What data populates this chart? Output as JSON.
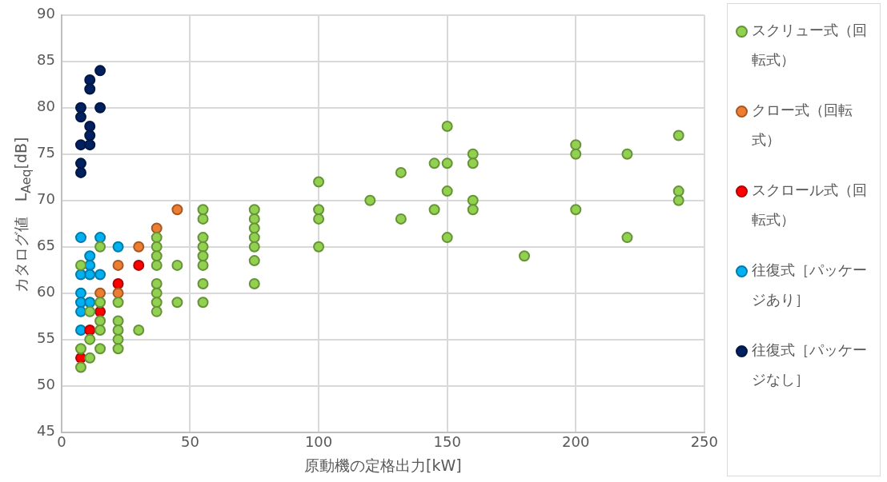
{
  "chart_data": {
    "type": "scatter",
    "xlabel": "原動機の定格出力[kW]",
    "ylabel": "カタログ値　L$_{Aeq}$[dB]",
    "xlim": [
      0,
      250
    ],
    "xticks": [
      0,
      50,
      100,
      150,
      200,
      250
    ],
    "ylim": [
      45,
      90
    ],
    "yticks": [
      45,
      50,
      55,
      60,
      65,
      70,
      75,
      80,
      85,
      90
    ],
    "grid": true,
    "legend": "right",
    "marker": "circle",
    "series": [
      {
        "name": "スクリュー式（回転式）",
        "color": "#92d050",
        "x": [
          7.5,
          7.5,
          7.5,
          11,
          11,
          11,
          15,
          15,
          15,
          15,
          15,
          22,
          22,
          22,
          22,
          22,
          30,
          37,
          37,
          37,
          37,
          37,
          37,
          37,
          37,
          45,
          45,
          55,
          55,
          55,
          55,
          55,
          55,
          55,
          55,
          75,
          75,
          75,
          75,
          75,
          75,
          75,
          100,
          100,
          100,
          100,
          120,
          132,
          132,
          145,
          145,
          150,
          150,
          150,
          150,
          160,
          160,
          160,
          160,
          180,
          200,
          200,
          200,
          220,
          220,
          240,
          240,
          240
        ],
        "values": [
          63,
          54,
          52,
          58,
          55,
          53,
          65,
          59,
          57,
          56,
          54,
          59,
          57,
          56,
          55,
          54,
          56,
          66,
          65,
          64,
          63,
          61,
          60,
          59,
          58,
          63,
          59,
          69,
          68,
          66,
          65,
          64,
          63,
          61,
          59,
          69,
          68,
          67,
          66,
          65,
          63.5,
          61,
          72,
          69,
          68,
          65,
          70,
          73,
          68,
          74,
          69,
          78,
          74,
          71,
          66,
          75,
          74,
          70,
          69,
          64,
          76,
          75,
          69,
          75,
          66,
          77,
          71,
          70
        ]
      },
      {
        "name": "クロー式（回転式）",
        "color": "#ed7d31",
        "x": [
          15,
          22,
          22,
          30,
          37,
          45
        ],
        "values": [
          60,
          63,
          60,
          65,
          67,
          69
        ]
      },
      {
        "name": "スクロール式（回転式）",
        "color": "#ff0000",
        "x": [
          7.5,
          11,
          15,
          22,
          30
        ],
        "values": [
          53,
          56,
          58,
          61,
          63
        ]
      },
      {
        "name": "往復式［パッケージあり］",
        "color": "#00b0f0",
        "x": [
          7.5,
          15,
          22,
          11,
          11,
          7.5,
          11,
          15,
          7.5,
          7.5,
          11,
          7.5,
          7.5
        ],
        "values": [
          66,
          66,
          65,
          64,
          63,
          62,
          62,
          62,
          60,
          59,
          59,
          58,
          56
        ]
      },
      {
        "name": "往復式［パッケージなし］",
        "color": "#002060",
        "x": [
          15,
          11,
          11,
          7.5,
          15,
          7.5,
          11,
          11,
          7.5,
          11,
          7.5,
          7.5
        ],
        "values": [
          84,
          83,
          82,
          80,
          80,
          79,
          78,
          77,
          76,
          76,
          74,
          73
        ]
      }
    ]
  }
}
